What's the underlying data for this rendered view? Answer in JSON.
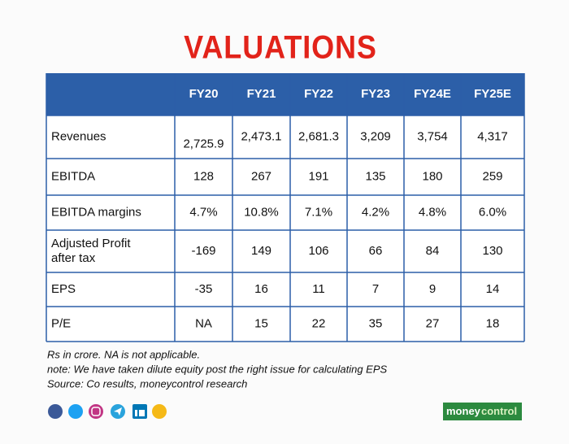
{
  "title": "VALUATIONS",
  "table": {
    "header": [
      "",
      "FY20",
      "FY21",
      "FY22",
      "FY23",
      "FY24E",
      "FY25E"
    ],
    "rows": [
      [
        "Revenues",
        "2,725.9",
        "2,473.1",
        "2,681.3",
        "3,209",
        "3,754",
        "4,317"
      ],
      [
        "EBITDA",
        "128",
        "267",
        "191",
        "135",
        "180",
        "259"
      ],
      [
        "EBITDA margins",
        "4.7%",
        "10.8%",
        "7.1%",
        "4.2%",
        "4.8%",
        "6.0%"
      ],
      [
        "Adjusted Profit after tax",
        "-169",
        "149",
        "106",
        "66",
        "84",
        "130"
      ],
      [
        "EPS",
        "-35",
        "16",
        "11",
        "7",
        "9",
        "14"
      ],
      [
        "P/E",
        "NA",
        "15",
        "22",
        "35",
        "27",
        "18"
      ]
    ]
  },
  "notes": [
    "Rs in crore. NA is not applicable.",
    "note: We have taken dilute equity post the right issue for calculating EPS",
    "Source: Co results, moneycontrol research"
  ],
  "logo": {
    "part1": "money",
    "part2": "control"
  }
}
